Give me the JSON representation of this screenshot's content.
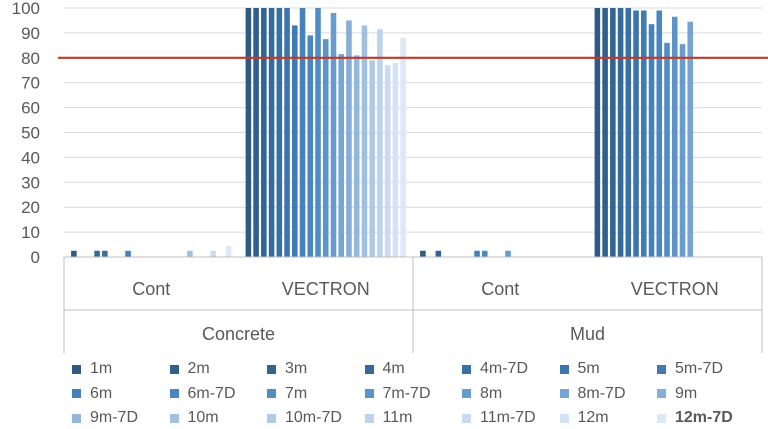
{
  "chart_data": {
    "type": "bar",
    "title": "",
    "xlabel": "",
    "ylabel": "",
    "ylim": [
      0,
      100
    ],
    "yticks": [
      0,
      10,
      20,
      30,
      40,
      50,
      60,
      70,
      80,
      90,
      100
    ],
    "gridlines": true,
    "reference_line": {
      "value": 80,
      "color": "#c0392b"
    },
    "legend_position": "bottom",
    "groups": [
      {
        "label": "Concrete",
        "subgroups": [
          "Cont",
          "VECTRON"
        ]
      },
      {
        "label": "Mud",
        "subgroups": [
          "Cont",
          "VECTRON"
        ]
      }
    ],
    "categories": [
      "Concrete | Cont",
      "Concrete | VECTRON",
      "Mud | Cont",
      "Mud | VECTRON"
    ],
    "series": [
      {
        "name": "1m",
        "color": "#2e5a84",
        "values": [
          2.5,
          100,
          2.5,
          100
        ]
      },
      {
        "name": "2m",
        "color": "#305f8b",
        "values": [
          0,
          100,
          0,
          100
        ]
      },
      {
        "name": "3m",
        "color": "#336493",
        "values": [
          0,
          100,
          2.5,
          100
        ]
      },
      {
        "name": "4m",
        "color": "#366a9b",
        "values": [
          2.5,
          100,
          0,
          100
        ]
      },
      {
        "name": "4m-7D",
        "color": "#3970a3",
        "values": [
          2.5,
          100,
          0,
          100
        ]
      },
      {
        "name": "5m",
        "color": "#3c75ab",
        "values": [
          0,
          100,
          0,
          99
        ]
      },
      {
        "name": "5m-7D",
        "color": "#407bb3",
        "values": [
          0,
          93,
          0,
          99
        ]
      },
      {
        "name": "6m",
        "color": "#4581bb",
        "values": [
          2.5,
          100,
          2.5,
          93.5
        ]
      },
      {
        "name": "6m-7D",
        "color": "#4a86c1",
        "values": [
          0,
          89,
          2.5,
          99
        ]
      },
      {
        "name": "7m",
        "color": "#508cc5",
        "values": [
          0,
          100,
          0,
          86
        ]
      },
      {
        "name": "7m-7D",
        "color": "#5c94ca",
        "values": [
          0,
          87.5,
          0,
          96.5
        ]
      },
      {
        "name": "8m",
        "color": "#699cce",
        "values": [
          0,
          98,
          2.5,
          85.5
        ]
      },
      {
        "name": "8m-7D",
        "color": "#77a5d3",
        "values": [
          0,
          81.5,
          0,
          94.5
        ]
      },
      {
        "name": "9m",
        "color": "#85aed8",
        "values": [
          0,
          95,
          0,
          0
        ]
      },
      {
        "name": "9m-7D",
        "color": "#93b8dc",
        "values": [
          0,
          81,
          0,
          0
        ]
      },
      {
        "name": "10m",
        "color": "#a1c1e1",
        "values": [
          2.5,
          93,
          0,
          0
        ]
      },
      {
        "name": "10m-7D",
        "color": "#afcae6",
        "values": [
          0,
          79,
          0,
          0
        ]
      },
      {
        "name": "11m",
        "color": "#bcd3ea",
        "values": [
          0,
          91.5,
          0,
          0
        ]
      },
      {
        "name": "11m-7D",
        "color": "#c8dbef",
        "values": [
          2.5,
          77,
          0,
          0
        ]
      },
      {
        "name": "12m",
        "color": "#d3e3f3",
        "values": [
          0,
          78,
          0,
          0
        ]
      },
      {
        "name": "12m-7D",
        "color": "#dde9f6",
        "values": [
          4.5,
          88,
          0,
          0
        ]
      }
    ],
    "legend_bold_item": "12m-7D"
  }
}
